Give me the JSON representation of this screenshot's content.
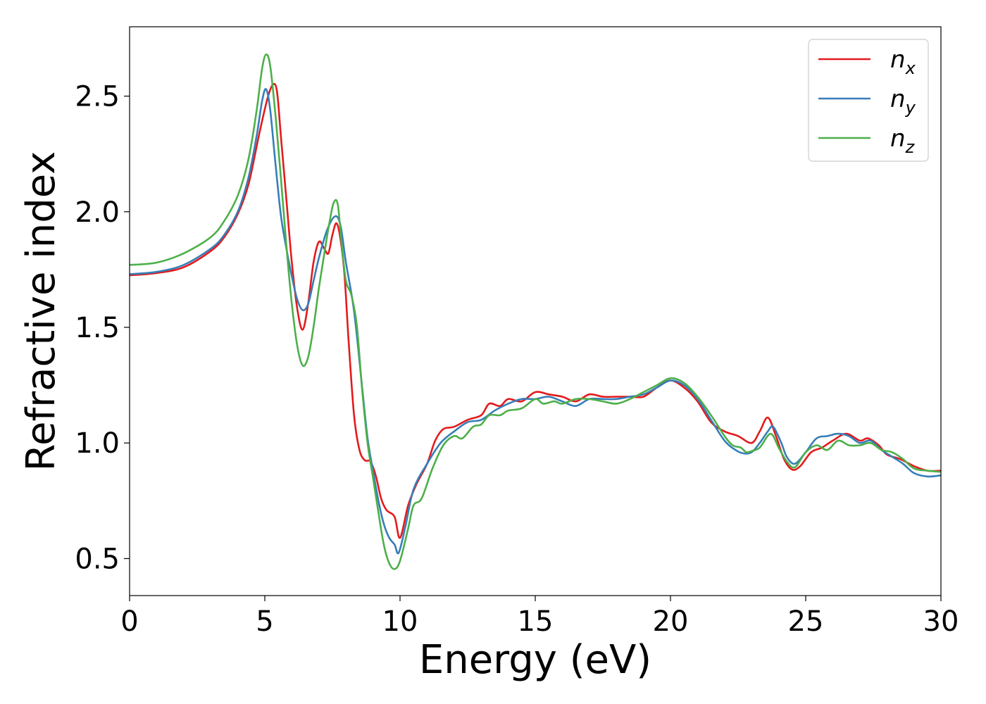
{
  "chart_data": {
    "type": "line",
    "title": "",
    "xlabel": "Energy (eV)",
    "ylabel": "Refractive index",
    "xlim": [
      0,
      30
    ],
    "ylim": [
      0.34,
      2.8
    ],
    "x_ticks": [
      0,
      5,
      10,
      15,
      20,
      25,
      30
    ],
    "x_tick_labels": [
      "0",
      "5",
      "10",
      "15",
      "20",
      "25",
      "30"
    ],
    "y_ticks": [
      0.5,
      1.0,
      1.5,
      2.0,
      2.5
    ],
    "y_tick_labels": [
      "0.5",
      "1.0",
      "1.5",
      "2.0",
      "2.5"
    ],
    "grid": false,
    "legend_position": "top-right",
    "series": [
      {
        "name": "n",
        "subscript": "x",
        "color": "#e41a1c",
        "points": [
          [
            0,
            1.725
          ],
          [
            1,
            1.735
          ],
          [
            2,
            1.76
          ],
          [
            3,
            1.83
          ],
          [
            3.5,
            1.89
          ],
          [
            4,
            1.99
          ],
          [
            4.4,
            2.12
          ],
          [
            4.8,
            2.34
          ],
          [
            5.1,
            2.49
          ],
          [
            5.3,
            2.55
          ],
          [
            5.45,
            2.52
          ],
          [
            5.6,
            2.32
          ],
          [
            5.8,
            2.05
          ],
          [
            6.0,
            1.78
          ],
          [
            6.2,
            1.58
          ],
          [
            6.4,
            1.49
          ],
          [
            6.6,
            1.6
          ],
          [
            6.8,
            1.78
          ],
          [
            7.0,
            1.87
          ],
          [
            7.2,
            1.84
          ],
          [
            7.35,
            1.82
          ],
          [
            7.5,
            1.9
          ],
          [
            7.65,
            1.95
          ],
          [
            7.8,
            1.88
          ],
          [
            7.95,
            1.72
          ],
          [
            8.1,
            1.44
          ],
          [
            8.3,
            1.12
          ],
          [
            8.5,
            0.97
          ],
          [
            8.7,
            0.925
          ],
          [
            8.9,
            0.92
          ],
          [
            9.1,
            0.86
          ],
          [
            9.3,
            0.76
          ],
          [
            9.5,
            0.71
          ],
          [
            9.8,
            0.68
          ],
          [
            10.0,
            0.59
          ],
          [
            10.3,
            0.73
          ],
          [
            10.6,
            0.82
          ],
          [
            11.0,
            0.91
          ],
          [
            11.3,
            1.01
          ],
          [
            11.6,
            1.06
          ],
          [
            12.0,
            1.07
          ],
          [
            12.5,
            1.1
          ],
          [
            13.0,
            1.12
          ],
          [
            13.3,
            1.17
          ],
          [
            13.7,
            1.16
          ],
          [
            14.0,
            1.19
          ],
          [
            14.5,
            1.18
          ],
          [
            15.0,
            1.22
          ],
          [
            15.5,
            1.21
          ],
          [
            16.0,
            1.2
          ],
          [
            16.5,
            1.18
          ],
          [
            17.0,
            1.21
          ],
          [
            17.5,
            1.2
          ],
          [
            18.0,
            1.2
          ],
          [
            18.5,
            1.2
          ],
          [
            19.0,
            1.2
          ],
          [
            19.5,
            1.24
          ],
          [
            20.0,
            1.27
          ],
          [
            20.5,
            1.24
          ],
          [
            21.0,
            1.18
          ],
          [
            21.5,
            1.09
          ],
          [
            22.0,
            1.05
          ],
          [
            22.5,
            1.03
          ],
          [
            23.0,
            1.0
          ],
          [
            23.3,
            1.05
          ],
          [
            23.6,
            1.11
          ],
          [
            23.9,
            1.03
          ],
          [
            24.2,
            0.93
          ],
          [
            24.5,
            0.885
          ],
          [
            24.8,
            0.9
          ],
          [
            25.2,
            0.96
          ],
          [
            25.6,
            0.98
          ],
          [
            26.0,
            1.01
          ],
          [
            26.5,
            1.04
          ],
          [
            27.0,
            1.01
          ],
          [
            27.3,
            1.02
          ],
          [
            27.7,
            0.99
          ],
          [
            28.0,
            0.95
          ],
          [
            28.5,
            0.93
          ],
          [
            29.0,
            0.9
          ],
          [
            29.5,
            0.88
          ],
          [
            30.0,
            0.88
          ]
        ]
      },
      {
        "name": "n",
        "subscript": "y",
        "color": "#377eb8",
        "points": [
          [
            0,
            1.73
          ],
          [
            1,
            1.74
          ],
          [
            2,
            1.77
          ],
          [
            3,
            1.84
          ],
          [
            3.5,
            1.9
          ],
          [
            4,
            2.0
          ],
          [
            4.4,
            2.15
          ],
          [
            4.7,
            2.33
          ],
          [
            4.9,
            2.48
          ],
          [
            5.05,
            2.53
          ],
          [
            5.2,
            2.44
          ],
          [
            5.4,
            2.2
          ],
          [
            5.6,
            1.98
          ],
          [
            5.8,
            1.84
          ],
          [
            6.0,
            1.72
          ],
          [
            6.2,
            1.62
          ],
          [
            6.4,
            1.575
          ],
          [
            6.6,
            1.6
          ],
          [
            6.8,
            1.7
          ],
          [
            7.0,
            1.8
          ],
          [
            7.3,
            1.92
          ],
          [
            7.6,
            1.98
          ],
          [
            7.8,
            1.94
          ],
          [
            8.0,
            1.78
          ],
          [
            8.3,
            1.57
          ],
          [
            8.6,
            1.24
          ],
          [
            8.8,
            1.02
          ],
          [
            9.0,
            0.88
          ],
          [
            9.2,
            0.75
          ],
          [
            9.4,
            0.65
          ],
          [
            9.6,
            0.59
          ],
          [
            9.8,
            0.56
          ],
          [
            9.95,
            0.525
          ],
          [
            10.2,
            0.64
          ],
          [
            10.5,
            0.8
          ],
          [
            11.0,
            0.91
          ],
          [
            11.5,
            1.0
          ],
          [
            12.0,
            1.05
          ],
          [
            12.5,
            1.09
          ],
          [
            13.0,
            1.1
          ],
          [
            13.5,
            1.14
          ],
          [
            14.0,
            1.17
          ],
          [
            14.5,
            1.19
          ],
          [
            15.0,
            1.19
          ],
          [
            15.5,
            1.2
          ],
          [
            16.0,
            1.18
          ],
          [
            16.5,
            1.16
          ],
          [
            17.0,
            1.19
          ],
          [
            17.5,
            1.19
          ],
          [
            18.0,
            1.19
          ],
          [
            18.5,
            1.2
          ],
          [
            19.0,
            1.21
          ],
          [
            19.5,
            1.24
          ],
          [
            20.0,
            1.27
          ],
          [
            20.5,
            1.25
          ],
          [
            21.0,
            1.19
          ],
          [
            21.5,
            1.1
          ],
          [
            22.0,
            1.01
          ],
          [
            22.4,
            0.97
          ],
          [
            22.7,
            0.955
          ],
          [
            23.0,
            0.96
          ],
          [
            23.3,
            1.0
          ],
          [
            23.6,
            1.05
          ],
          [
            23.8,
            1.07
          ],
          [
            24.1,
            1.0
          ],
          [
            24.3,
            0.94
          ],
          [
            24.6,
            0.91
          ],
          [
            25.0,
            0.96
          ],
          [
            25.4,
            1.02
          ],
          [
            25.8,
            1.03
          ],
          [
            26.2,
            1.04
          ],
          [
            26.6,
            1.03
          ],
          [
            27.0,
            1.0
          ],
          [
            27.4,
            1.01
          ],
          [
            27.8,
            0.97
          ],
          [
            28.2,
            0.94
          ],
          [
            28.6,
            0.91
          ],
          [
            29.0,
            0.87
          ],
          [
            29.5,
            0.855
          ],
          [
            30.0,
            0.86
          ]
        ]
      },
      {
        "name": "n",
        "subscript": "z",
        "color": "#4daf4a",
        "points": [
          [
            0,
            1.77
          ],
          [
            1,
            1.78
          ],
          [
            2,
            1.82
          ],
          [
            3,
            1.89
          ],
          [
            3.5,
            1.96
          ],
          [
            4,
            2.07
          ],
          [
            4.4,
            2.23
          ],
          [
            4.7,
            2.44
          ],
          [
            4.9,
            2.62
          ],
          [
            5.05,
            2.68
          ],
          [
            5.2,
            2.63
          ],
          [
            5.4,
            2.41
          ],
          [
            5.6,
            2.14
          ],
          [
            5.8,
            1.85
          ],
          [
            6.0,
            1.6
          ],
          [
            6.2,
            1.42
          ],
          [
            6.4,
            1.335
          ],
          [
            6.6,
            1.37
          ],
          [
            6.8,
            1.5
          ],
          [
            7.0,
            1.67
          ],
          [
            7.2,
            1.82
          ],
          [
            7.4,
            1.96
          ],
          [
            7.55,
            2.04
          ],
          [
            7.7,
            2.03
          ],
          [
            7.85,
            1.85
          ],
          [
            8.0,
            1.7
          ],
          [
            8.2,
            1.64
          ],
          [
            8.4,
            1.51
          ],
          [
            8.6,
            1.23
          ],
          [
            8.8,
            1.0
          ],
          [
            9.0,
            0.85
          ],
          [
            9.2,
            0.7
          ],
          [
            9.4,
            0.56
          ],
          [
            9.6,
            0.48
          ],
          [
            9.8,
            0.455
          ],
          [
            10.0,
            0.49
          ],
          [
            10.3,
            0.63
          ],
          [
            10.5,
            0.73
          ],
          [
            10.8,
            0.76
          ],
          [
            11.2,
            0.89
          ],
          [
            11.6,
            0.99
          ],
          [
            12.0,
            1.03
          ],
          [
            12.3,
            1.02
          ],
          [
            12.7,
            1.07
          ],
          [
            13.0,
            1.08
          ],
          [
            13.3,
            1.12
          ],
          [
            13.7,
            1.12
          ],
          [
            14.0,
            1.14
          ],
          [
            14.5,
            1.15
          ],
          [
            15.0,
            1.19
          ],
          [
            15.3,
            1.17
          ],
          [
            15.7,
            1.18
          ],
          [
            16.0,
            1.17
          ],
          [
            16.5,
            1.19
          ],
          [
            17.0,
            1.19
          ],
          [
            17.5,
            1.18
          ],
          [
            18.0,
            1.17
          ],
          [
            18.5,
            1.19
          ],
          [
            19.0,
            1.22
          ],
          [
            19.5,
            1.25
          ],
          [
            20.0,
            1.28
          ],
          [
            20.5,
            1.26
          ],
          [
            21.0,
            1.2
          ],
          [
            21.5,
            1.12
          ],
          [
            22.0,
            1.03
          ],
          [
            22.3,
            0.99
          ],
          [
            22.6,
            0.98
          ],
          [
            22.8,
            0.96
          ],
          [
            23.0,
            0.965
          ],
          [
            23.3,
            0.98
          ],
          [
            23.7,
            1.04
          ],
          [
            24.0,
            0.98
          ],
          [
            24.3,
            0.92
          ],
          [
            24.6,
            0.895
          ],
          [
            25.0,
            0.96
          ],
          [
            25.4,
            0.99
          ],
          [
            25.8,
            0.97
          ],
          [
            26.2,
            1.01
          ],
          [
            26.6,
            0.99
          ],
          [
            27.0,
            0.99
          ],
          [
            27.4,
            1.0
          ],
          [
            27.8,
            0.97
          ],
          [
            28.2,
            0.96
          ],
          [
            28.6,
            0.93
          ],
          [
            29.0,
            0.89
          ],
          [
            29.5,
            0.88
          ],
          [
            30.0,
            0.875
          ]
        ]
      }
    ]
  }
}
